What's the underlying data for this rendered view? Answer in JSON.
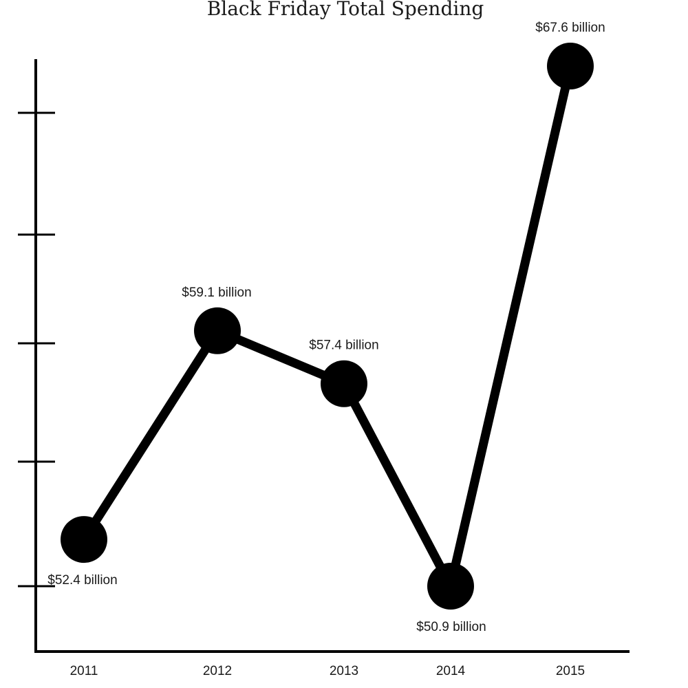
{
  "chart_data": {
    "type": "line",
    "title": "Black Friday Total Spending",
    "xlabel": "",
    "ylabel": "",
    "categories": [
      "2011",
      "2012",
      "2013",
      "2014",
      "2015"
    ],
    "series": [
      {
        "values": [
          52.4,
          59.1,
          57.4,
          50.9,
          67.6
        ]
      }
    ],
    "data_labels": [
      "$52.4 billion",
      "$59.1 billion",
      "$57.4 billion",
      "$50.9 billion",
      "$67.6 billion"
    ],
    "ylim": [
      48,
      68
    ],
    "grid": false,
    "legend": "none",
    "colors": {
      "line": "#000000",
      "marker": "#000000",
      "axis": "#000000",
      "text": "#1a1a1a"
    }
  }
}
